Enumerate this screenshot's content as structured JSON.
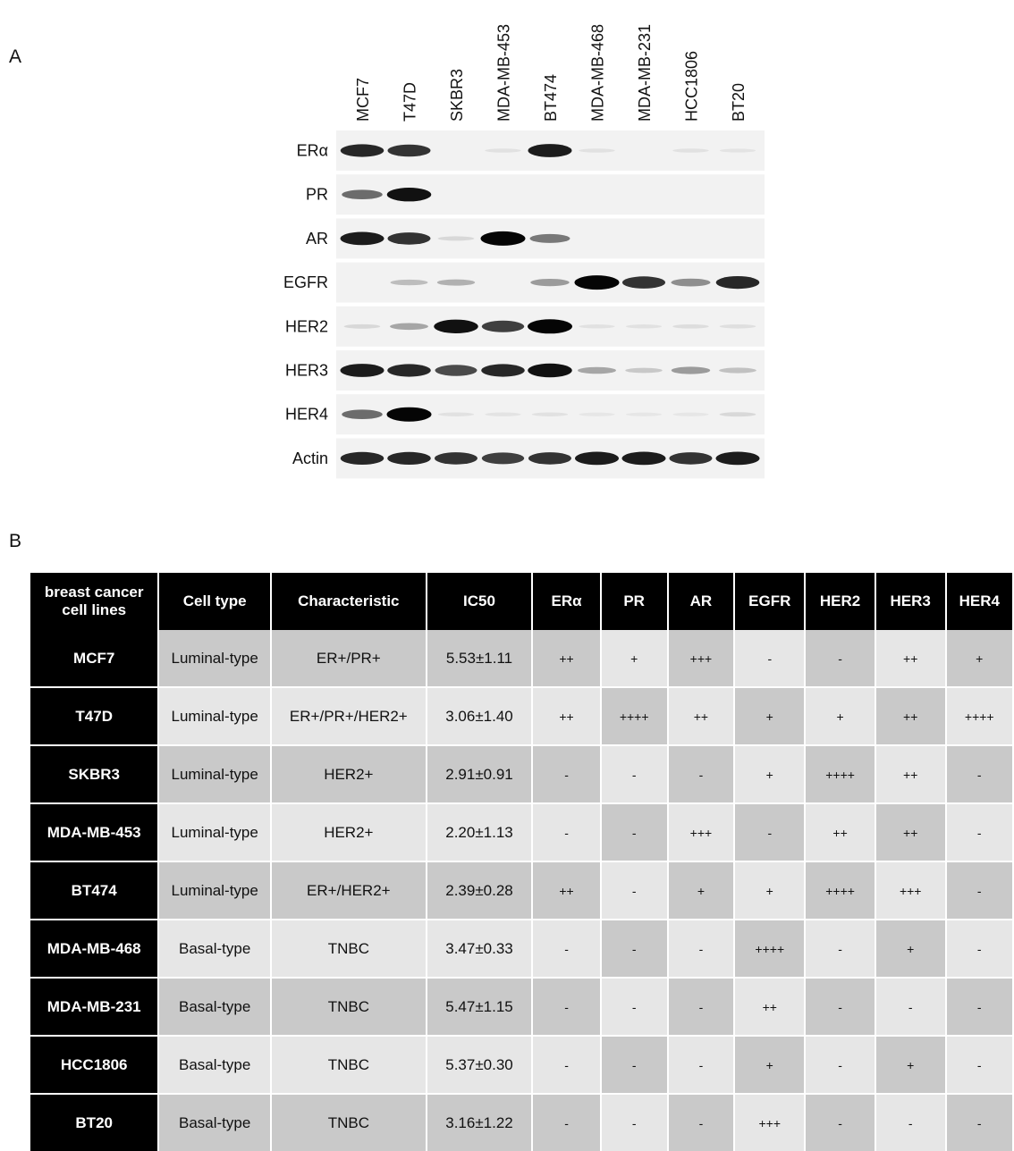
{
  "panel_a_label": "A",
  "panel_b_label": "B",
  "lanes": [
    "MCF7",
    "T47D",
    "SKBR3",
    "MDA-MB-453",
    "BT474",
    "MDA-MB-468",
    "MDA-MB-231",
    "HCC1806",
    "BT20"
  ],
  "blots": [
    {
      "label": "ERα",
      "bands": [
        0.85,
        0.8,
        0,
        0.04,
        0.9,
        0.04,
        0,
        0.04,
        0.03
      ]
    },
    {
      "label": "PR",
      "bands": [
        0.55,
        0.95,
        0,
        0,
        0,
        0,
        0,
        0,
        0
      ]
    },
    {
      "label": "AR",
      "bands": [
        0.9,
        0.8,
        0.08,
        1.0,
        0.5,
        0,
        0,
        0,
        0
      ]
    },
    {
      "label": "EGFR",
      "bands": [
        0,
        0.2,
        0.25,
        0,
        0.35,
        1.0,
        0.8,
        0.4,
        0.85
      ]
    },
    {
      "label": "HER2",
      "bands": [
        0.08,
        0.3,
        0.95,
        0.75,
        1.0,
        0.04,
        0.04,
        0.06,
        0.05
      ]
    },
    {
      "label": "HER3",
      "bands": [
        0.9,
        0.85,
        0.7,
        0.85,
        0.95,
        0.3,
        0.15,
        0.35,
        0.18
      ]
    },
    {
      "label": "HER4",
      "bands": [
        0.55,
        1.0,
        0.04,
        0.03,
        0.04,
        0.02,
        0.02,
        0.02,
        0.08
      ]
    },
    {
      "label": "Actin",
      "bands": [
        0.85,
        0.85,
        0.8,
        0.75,
        0.8,
        0.9,
        0.9,
        0.8,
        0.9
      ]
    }
  ],
  "table": {
    "headers": [
      "breast cancer\ncell lines",
      "Cell type",
      "Characteristic",
      "IC50",
      "ERα",
      "PR",
      "AR",
      "EGFR",
      "HER2",
      "HER3",
      "HER4"
    ],
    "rows": [
      [
        "MCF7",
        "Luminal-type",
        "ER+/PR+",
        "5.53±1.11",
        "++",
        "+",
        "+++",
        "-",
        "-",
        "++",
        "+"
      ],
      [
        "T47D",
        "Luminal-type",
        "ER+/PR+/HER2+",
        "3.06±1.40",
        "++",
        "++++",
        "++",
        "+",
        "+",
        "++",
        "++++"
      ],
      [
        "SKBR3",
        "Luminal-type",
        "HER2+",
        "2.91±0.91",
        "-",
        "-",
        "-",
        "+",
        "++++",
        "++",
        "-"
      ],
      [
        "MDA-MB-453",
        "Luminal-type",
        "HER2+",
        "2.20±1.13",
        "-",
        "-",
        "+++",
        "-",
        "++",
        "++",
        "-"
      ],
      [
        "BT474",
        "Luminal-type",
        "ER+/HER2+",
        "2.39±0.28",
        "++",
        "-",
        "+",
        "+",
        "++++",
        "+++",
        "-"
      ],
      [
        "MDA-MB-468",
        "Basal-type",
        "TNBC",
        "3.47±0.33",
        "-",
        "-",
        "-",
        "++++",
        "-",
        "+",
        "-"
      ],
      [
        "MDA-MB-231",
        "Basal-type",
        "TNBC",
        "5.47±1.15",
        "-",
        "-",
        "-",
        "++",
        "-",
        "-",
        "-"
      ],
      [
        "HCC1806",
        "Basal-type",
        "TNBC",
        "5.37±0.30",
        "-",
        "-",
        "-",
        "+",
        "-",
        "+",
        "-"
      ],
      [
        "BT20",
        "Basal-type",
        "TNBC",
        "3.16±1.22",
        "-",
        "-",
        "-",
        "+++",
        "-",
        "-",
        "-"
      ]
    ]
  }
}
